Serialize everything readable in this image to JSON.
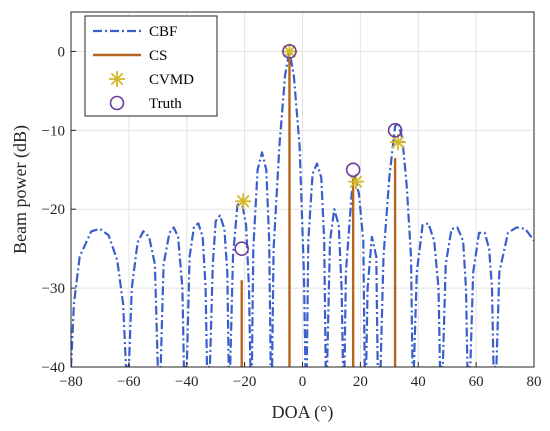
{
  "chart_data": {
    "type": "line",
    "xlabel": "DOA (°)",
    "ylabel": "Beam power (dB)",
    "xlim": [
      -80,
      80
    ],
    "ylim": [
      -40,
      5
    ],
    "xticks": [
      -80,
      -60,
      -40,
      -20,
      0,
      20,
      40,
      60,
      80
    ],
    "yticks": [
      -40,
      -30,
      -20,
      -10,
      0
    ],
    "xtick_labels": [
      "−80",
      "−60",
      "−40",
      "−20",
      "0",
      "20",
      "40",
      "60",
      "80"
    ],
    "ytick_labels": [
      "−40",
      "−30",
      "−20",
      "−10",
      "0"
    ],
    "legend_position": "top-left",
    "series": [
      {
        "name": "CBF",
        "kind": "line",
        "color": "#3a5fcd",
        "points": [
          [
            -80,
            -40
          ],
          [
            -79,
            -32
          ],
          [
            -77,
            -26
          ],
          [
            -73,
            -22.8
          ],
          [
            -70,
            -22.5
          ],
          [
            -67,
            -23.3
          ],
          [
            -64,
            -26.5
          ],
          [
            -62,
            -32
          ],
          [
            -61,
            -40
          ],
          [
            -60,
            -40
          ],
          [
            -59,
            -30
          ],
          [
            -57,
            -24.2
          ],
          [
            -55,
            -22.8
          ],
          [
            -53,
            -23.5
          ],
          [
            -51,
            -27
          ],
          [
            -50,
            -40
          ],
          [
            -49,
            -40
          ],
          [
            -48,
            -27
          ],
          [
            -46,
            -23
          ],
          [
            -44.5,
            -22.3
          ],
          [
            -43,
            -23.5
          ],
          [
            -41.5,
            -30
          ],
          [
            -41,
            -40
          ],
          [
            -40,
            -40
          ],
          [
            -39,
            -26
          ],
          [
            -37.5,
            -22.2
          ],
          [
            -36,
            -21.8
          ],
          [
            -34.5,
            -23.5
          ],
          [
            -33.5,
            -30
          ],
          [
            -33,
            -40
          ],
          [
            -32,
            -40
          ],
          [
            -31,
            -27
          ],
          [
            -30,
            -21.5
          ],
          [
            -28.5,
            -20.8
          ],
          [
            -27,
            -22.5
          ],
          [
            -26,
            -28
          ],
          [
            -25.5,
            -40
          ],
          [
            -25,
            -40
          ],
          [
            -24,
            -26
          ],
          [
            -22.5,
            -19.5
          ],
          [
            -21,
            -19
          ],
          [
            -19.5,
            -22
          ],
          [
            -18.5,
            -30
          ],
          [
            -18,
            -40
          ],
          [
            -17.5,
            -40
          ],
          [
            -17,
            -25
          ],
          [
            -15.5,
            -15
          ],
          [
            -14,
            -12.8
          ],
          [
            -12.5,
            -15
          ],
          [
            -11.5,
            -24
          ],
          [
            -11,
            -40
          ],
          [
            -10.5,
            -40
          ],
          [
            -10,
            -25
          ],
          [
            -8,
            -12
          ],
          [
            -6,
            -3
          ],
          [
            -4.5,
            0
          ],
          [
            -3,
            -3
          ],
          [
            -1,
            -12
          ],
          [
            0.5,
            -28
          ],
          [
            1,
            -40
          ],
          [
            1.5,
            -40
          ],
          [
            2,
            -24
          ],
          [
            3.5,
            -15.5
          ],
          [
            5,
            -14.2
          ],
          [
            6.5,
            -16
          ],
          [
            7.5,
            -24
          ],
          [
            8,
            -40
          ],
          [
            8.5,
            -40
          ],
          [
            9.5,
            -24
          ],
          [
            11,
            -20
          ],
          [
            12.5,
            -22
          ],
          [
            13.5,
            -30
          ],
          [
            14,
            -40
          ],
          [
            14.5,
            -40
          ],
          [
            15,
            -28
          ],
          [
            17,
            -18
          ],
          [
            18,
            -16
          ],
          [
            19.5,
            -18
          ],
          [
            21,
            -24
          ],
          [
            21.5,
            -40
          ],
          [
            22,
            -40
          ],
          [
            22.5,
            -30
          ],
          [
            24,
            -23.5
          ],
          [
            25.5,
            -26
          ],
          [
            26,
            -40
          ],
          [
            27,
            -40
          ],
          [
            28,
            -26
          ],
          [
            30,
            -16
          ],
          [
            32,
            -9.5
          ],
          [
            33,
            -9
          ],
          [
            34.5,
            -11
          ],
          [
            36,
            -17
          ],
          [
            37.5,
            -26
          ],
          [
            38,
            -40
          ],
          [
            38.5,
            -40
          ],
          [
            39.5,
            -28
          ],
          [
            41.5,
            -22
          ],
          [
            43.5,
            -21.8
          ],
          [
            45.5,
            -24
          ],
          [
            47,
            -30
          ],
          [
            47.5,
            -40
          ],
          [
            48.5,
            -40
          ],
          [
            49.5,
            -27
          ],
          [
            51.5,
            -22.5
          ],
          [
            53.5,
            -22.3
          ],
          [
            55.5,
            -24
          ],
          [
            56.5,
            -30
          ],
          [
            57,
            -40
          ],
          [
            58,
            -40
          ],
          [
            59,
            -28
          ],
          [
            61,
            -23
          ],
          [
            63,
            -23
          ],
          [
            64.5,
            -25
          ],
          [
            65.5,
            -30
          ],
          [
            66,
            -40
          ],
          [
            67,
            -40
          ],
          [
            68,
            -28
          ],
          [
            71,
            -23
          ],
          [
            74,
            -22.3
          ],
          [
            77,
            -22.5
          ],
          [
            80,
            -24
          ]
        ]
      },
      {
        "name": "CS",
        "kind": "stem",
        "color": "#b5651d",
        "points": [
          [
            -21,
            -29
          ],
          [
            -4.5,
            -0.5
          ],
          [
            17.5,
            -16
          ],
          [
            32,
            -13.5
          ]
        ]
      },
      {
        "name": "CVMD",
        "kind": "marker",
        "marker": "asterisk",
        "color": "#d4b82a",
        "points": [
          [
            -20.5,
            -19
          ],
          [
            -4.5,
            0
          ],
          [
            18.5,
            -16.5
          ],
          [
            33,
            -11.5
          ]
        ]
      },
      {
        "name": "Truth",
        "kind": "marker",
        "marker": "circle",
        "color": "#6a3d9a",
        "points": [
          [
            -21,
            -25
          ],
          [
            -4.5,
            0
          ],
          [
            17.5,
            -15
          ],
          [
            32,
            -10
          ]
        ]
      }
    ]
  }
}
